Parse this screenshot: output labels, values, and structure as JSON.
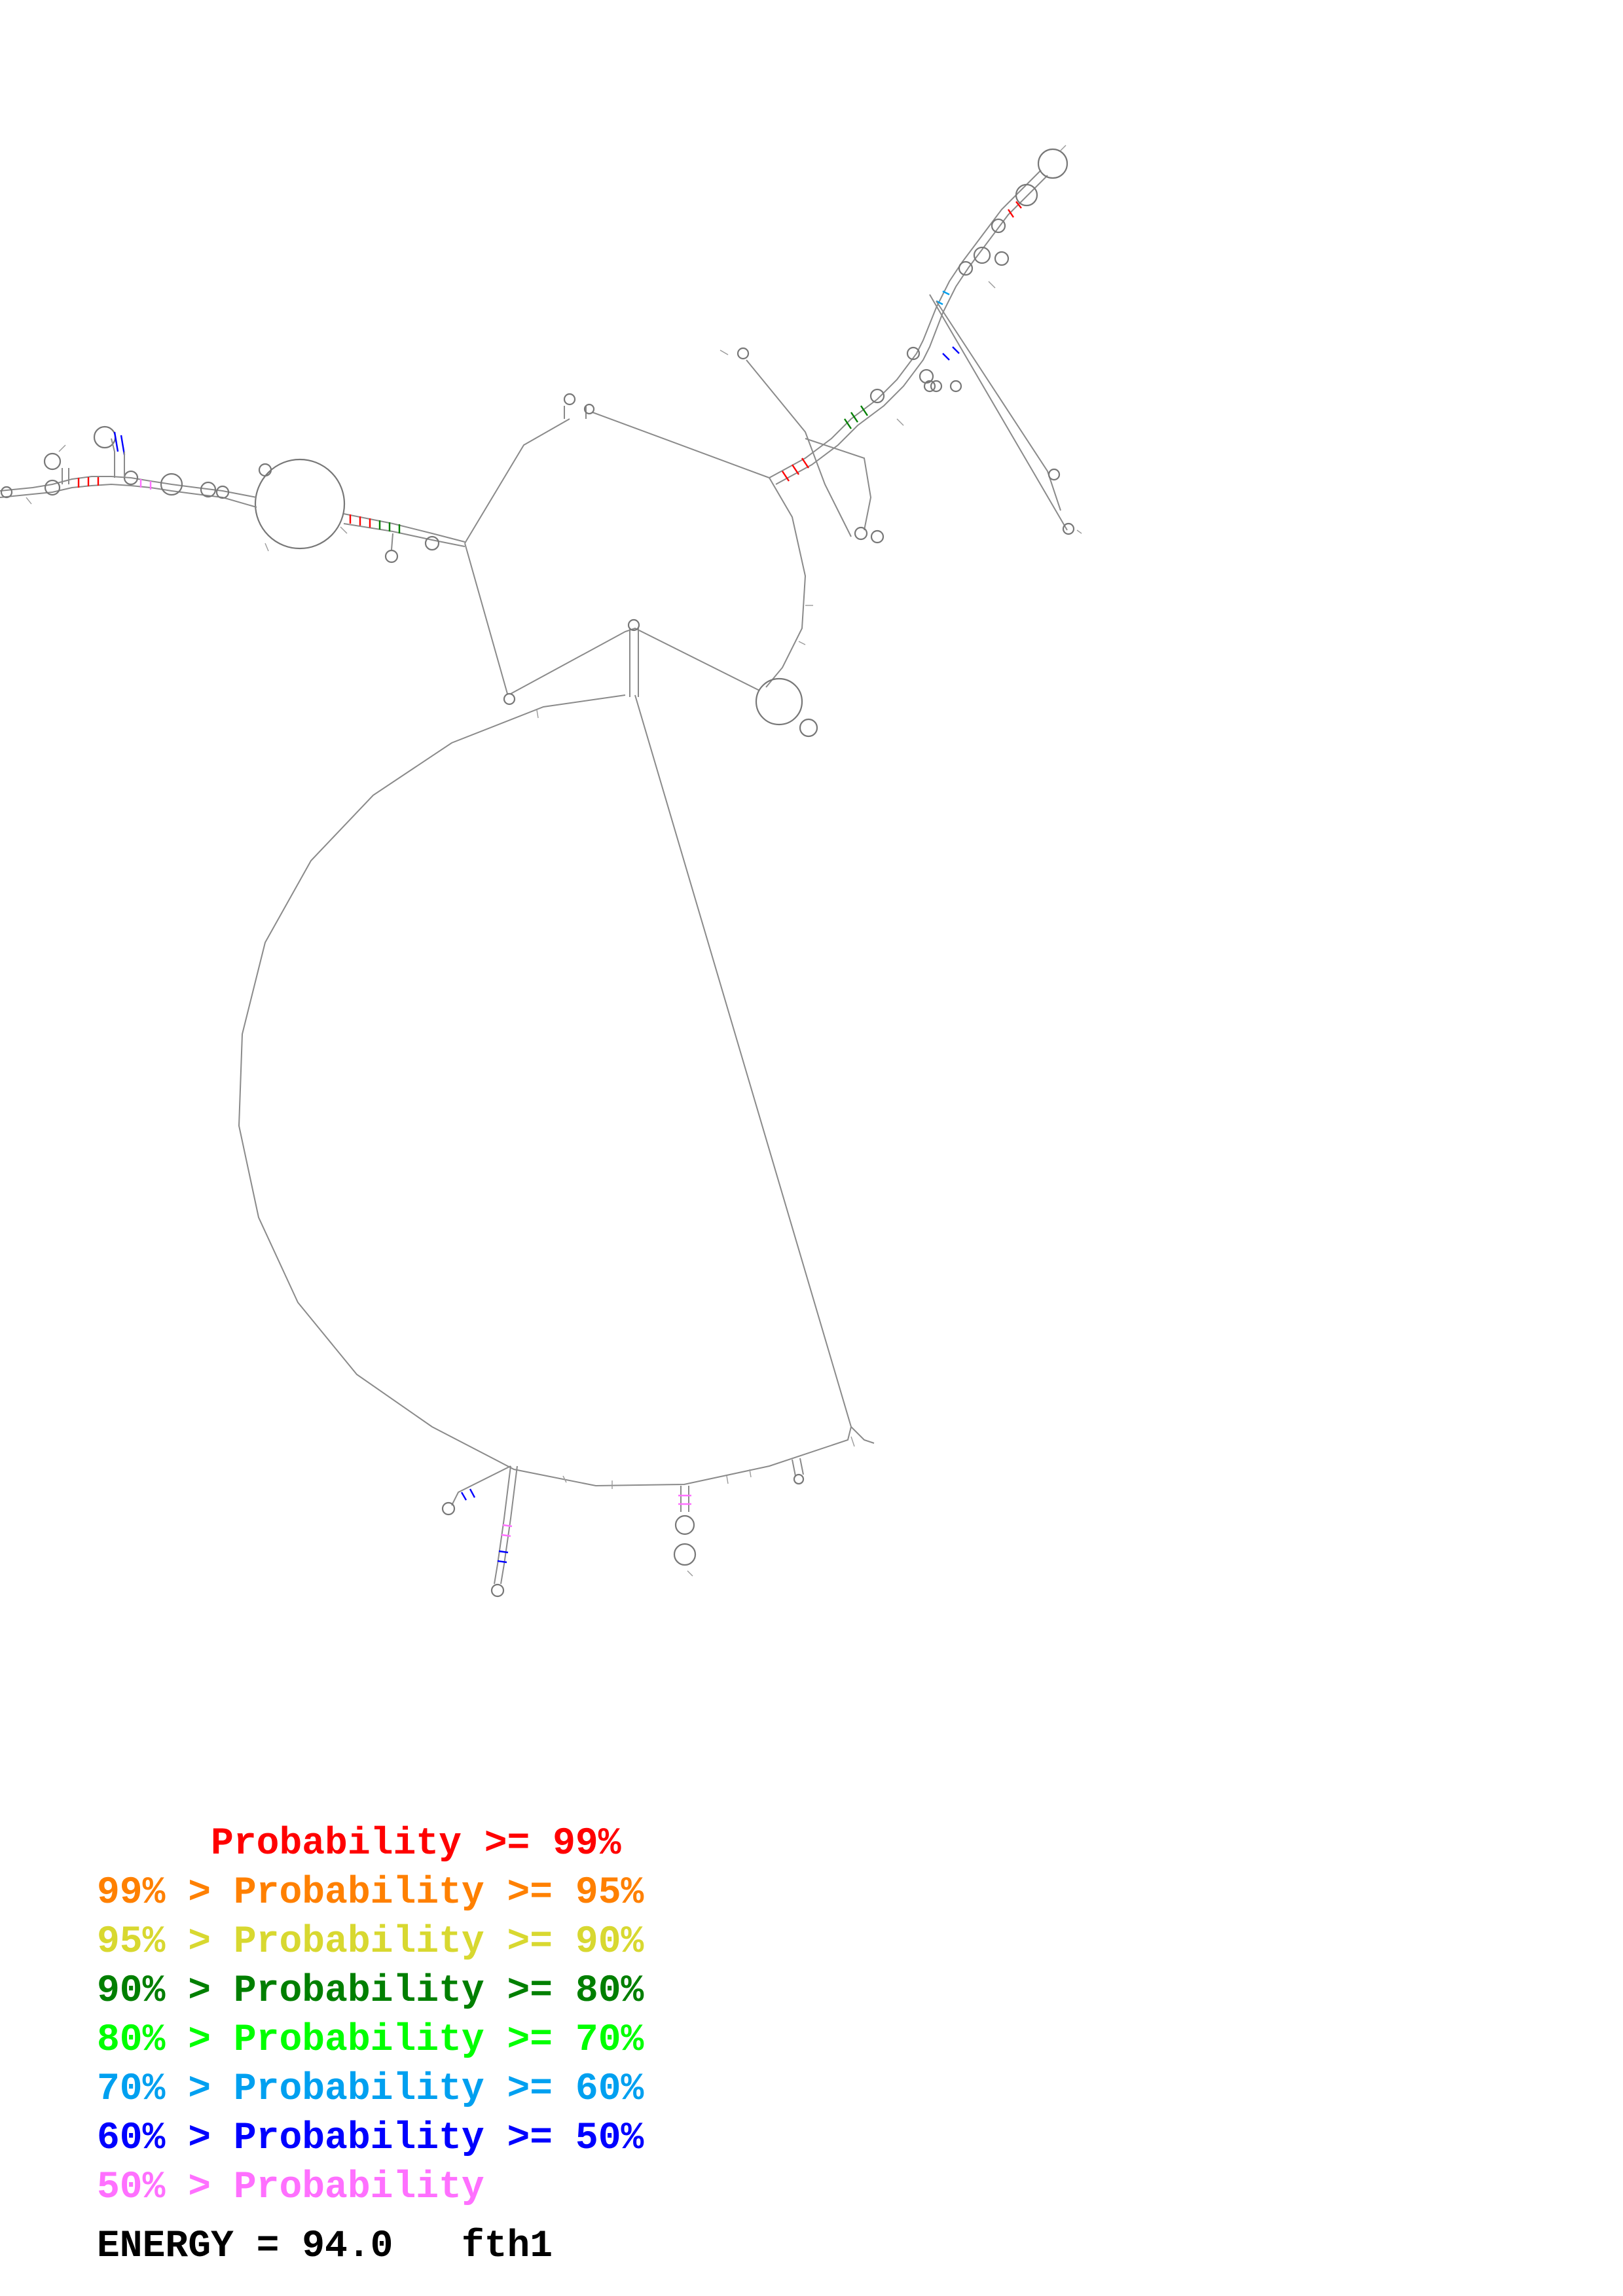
{
  "legend": {
    "rows": [
      {
        "text": "     Probability >= 99%",
        "color": "#ff0000"
      },
      {
        "text": "99% > Probability >= 95%",
        "color": "#ff8000"
      },
      {
        "text": "95% > Probability >= 90%",
        "color": "#d8d830"
      },
      {
        "text": "90% > Probability >= 80%",
        "color": "#007f00"
      },
      {
        "text": "80% > Probability >= 70%",
        "color": "#00ff00"
      },
      {
        "text": "70% > Probability >= 60%",
        "color": "#00a0f0"
      },
      {
        "text": "60% > Probability >= 50%",
        "color": "#0000ff"
      },
      {
        "text": "50% > Probability",
        "color": "#ff70ff"
      }
    ]
  },
  "energy_label": "ENERGY = 94.0   fth1"
}
